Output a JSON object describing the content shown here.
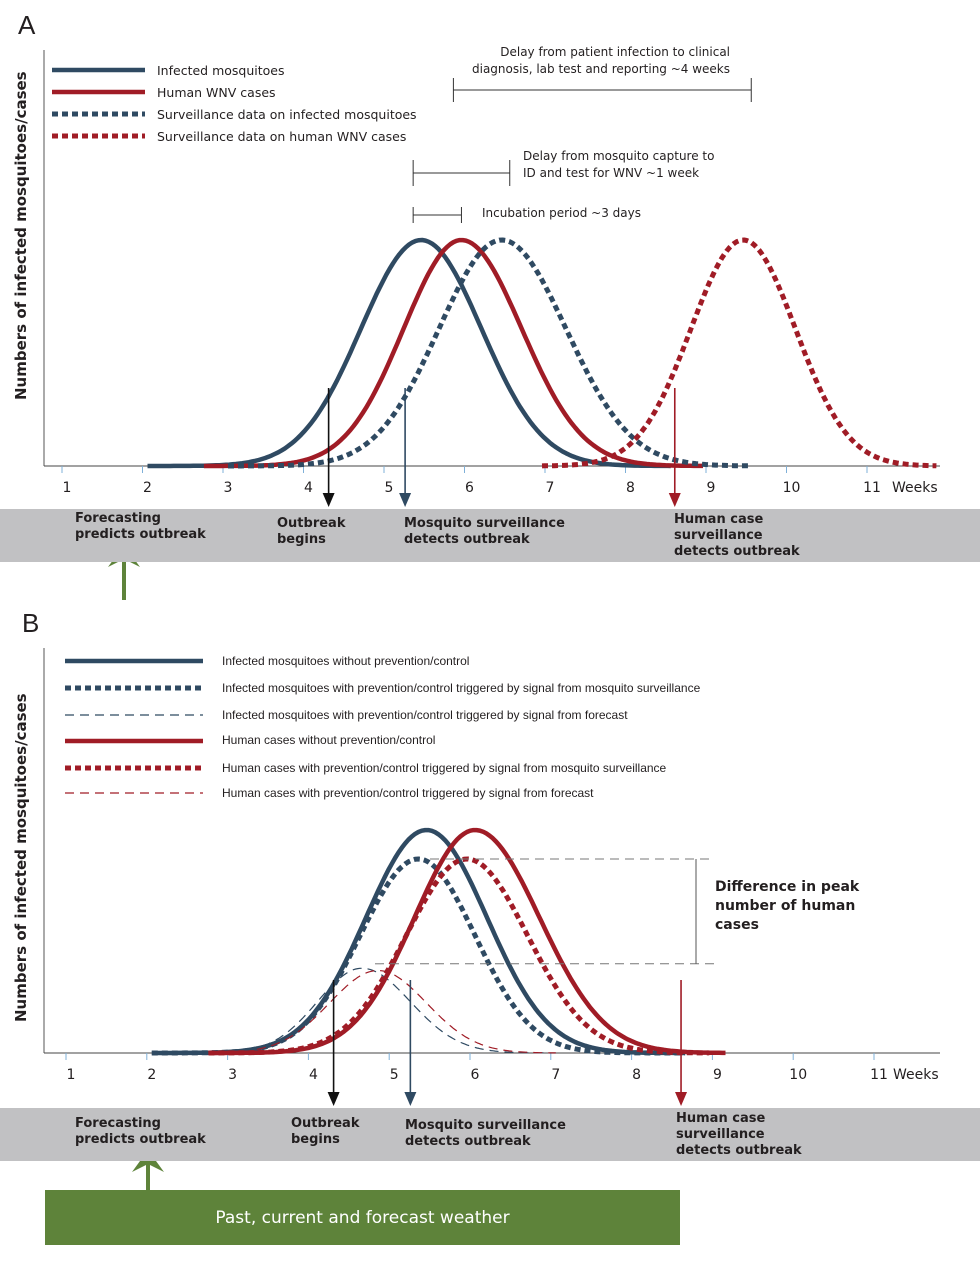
{
  "colors": {
    "mosquito": "#2f4a62",
    "human": "#a01c26",
    "band": "#c1c1c3",
    "weather": "#5e833a",
    "tick": "#7fb0d8"
  },
  "panel_a": {
    "letter": "A",
    "ylabel": "Numbers of infected mosquitoes/cases",
    "legend": [
      {
        "label": "Infected mosquitoes",
        "color": "#2f4a62",
        "style": "solid"
      },
      {
        "label": "Human WNV cases",
        "color": "#a01c26",
        "style": "solid"
      },
      {
        "label": "Surveillance data on infected mosquitoes",
        "color": "#2f4a62",
        "style": "dotted"
      },
      {
        "label": "Surveillance data on human WNV cases",
        "color": "#a01c26",
        "style": "dotted"
      }
    ],
    "annotations": {
      "delay_patient": "Delay from patient infection to clinical diagnosis, lab test and reporting ~4 weeks",
      "delay_patient_line1": "Delay from patient infection to clinical",
      "delay_patient_line2": "diagnosis, lab test and reporting ~4 weeks",
      "delay_mosquito_line1": "Delay from mosquito capture to",
      "delay_mosquito_line2": "ID and test for WNV ~1 week",
      "incubation": "Incubation period ~3 days"
    },
    "x_unit": "Weeks",
    "band_labels": {
      "forecast_line1": "Forecasting",
      "forecast_line2": "predicts outbreak",
      "outbreak_line1": "Outbreak",
      "outbreak_line2": "begins",
      "mosq_line1": "Mosquito surveillance",
      "mosq_line2": "detects outbreak",
      "human_line1": "Human case",
      "human_line2": "surveillance",
      "human_line3": "detects outbreak"
    }
  },
  "panel_b": {
    "letter": "B",
    "ylabel": "Numbers of infected mosquitoes/cases",
    "legend": [
      {
        "label": "Infected mosquitoes without prevention/control",
        "color": "#2f4a62",
        "style": "solid"
      },
      {
        "label": "Infected mosquitoes with prevention/control triggered by signal from mosquito surveillance",
        "color": "#2f4a62",
        "style": "dotted"
      },
      {
        "label": "Infected mosquitoes with prevention/control triggered by signal from forecast",
        "color": "#2f4a62",
        "style": "dashed"
      },
      {
        "label": "Human cases without prevention/control",
        "color": "#a01c26",
        "style": "solid"
      },
      {
        "label": "Human cases with prevention/control triggered by signal from mosquito surveillance",
        "color": "#a01c26",
        "style": "dotted"
      },
      {
        "label": "Human cases with prevention/control triggered by signal from forecast",
        "color": "#a01c26",
        "style": "dashed"
      }
    ],
    "diff_line1": "Difference in peak",
    "diff_line2": "number of human",
    "diff_line3": "cases",
    "x_unit": "Weeks",
    "band_labels": {
      "forecast_line1": "Forecasting",
      "forecast_line2": "predicts outbreak",
      "outbreak_line1": "Outbreak",
      "outbreak_line2": "begins",
      "mosq_line1": "Mosquito surveillance",
      "mosq_line2": "detects outbreak",
      "human_line1": "Human case",
      "human_line2": "surveillance",
      "human_line3": "detects outbreak"
    },
    "weather_label": "Past, current and forecast weather"
  },
  "chart_data": [
    {
      "type": "line",
      "title": "A",
      "xlabel": "Weeks",
      "ylabel": "Numbers of infected mosquitoes/cases",
      "x_ticks": [
        1,
        2,
        3,
        4,
        5,
        6,
        7,
        8,
        9,
        10,
        11
      ],
      "xlim": [
        0.9,
        11.8
      ],
      "ylim": [
        0,
        1.05
      ],
      "series": [
        {
          "name": "Infected mosquitoes",
          "style": "solid",
          "color": "#2f4a62",
          "peak_week": 5.4,
          "peak": 1.0,
          "sd_left": 0.75,
          "sd_right": 0.75,
          "x_range": [
            2.0,
            8.5
          ]
        },
        {
          "name": "Human WNV cases",
          "style": "solid",
          "color": "#a01c26",
          "peak_week": 5.9,
          "peak": 1.0,
          "sd_left": 0.72,
          "sd_right": 0.75,
          "x_range": [
            2.7,
            8.9
          ]
        },
        {
          "name": "Surveillance data on infected mosquitoes",
          "style": "dotted",
          "color": "#2f4a62",
          "peak_week": 6.4,
          "peak": 1.0,
          "sd_left": 0.78,
          "sd_right": 0.8,
          "x_range": [
            3.0,
            9.5
          ]
        },
        {
          "name": "Surveillance data on human WNV cases",
          "style": "dotted",
          "color": "#a01c26",
          "peak_week": 9.4,
          "peak": 1.0,
          "sd_left": 0.65,
          "sd_right": 0.65,
          "x_range": [
            6.9,
            11.8
          ]
        }
      ],
      "markers": [
        {
          "name": "Outbreak begins",
          "week": 4.25,
          "color": "#111111"
        },
        {
          "name": "Mosquito surveillance detects outbreak",
          "week": 5.2,
          "color": "#2f4a62"
        },
        {
          "name": "Human case surveillance detects outbreak",
          "week": 8.55,
          "color": "#a01c26"
        }
      ],
      "intervals": [
        {
          "label": "Incubation period ~3 days",
          "from_week": 5.3,
          "to_week": 5.9
        },
        {
          "label": "Delay from mosquito capture to ID and test for WNV ~1 week",
          "from_week": 5.3,
          "to_week": 6.5
        },
        {
          "label": "Delay from patient infection to clinical diagnosis, lab test and reporting ~4 weeks",
          "from_week": 5.8,
          "to_week": 9.5
        }
      ]
    },
    {
      "type": "line",
      "title": "B",
      "xlabel": "Weeks",
      "ylabel": "Numbers of infected mosquitoes/cases",
      "x_ticks": [
        1,
        2,
        3,
        4,
        5,
        6,
        7,
        8,
        9,
        10,
        11
      ],
      "xlim": [
        0.9,
        11.8
      ],
      "ylim": [
        0,
        1.05
      ],
      "series": [
        {
          "name": "Infected mosquitoes without prevention/control",
          "style": "solid",
          "color": "#2f4a62",
          "peak_week": 5.4,
          "peak": 1.0,
          "sd_left": 0.75,
          "sd_right": 0.75,
          "x_range": [
            2.0,
            8.6
          ]
        },
        {
          "name": "Infected mosquitoes with prevention/control triggered by signal from mosquito surveillance",
          "style": "dotted",
          "color": "#2f4a62",
          "peak_week": 5.3,
          "peak": 0.87,
          "sd_left": 0.72,
          "sd_right": 0.7,
          "x_range": [
            2.0,
            8.6
          ]
        },
        {
          "name": "Infected mosquitoes with prevention/control triggered by signal from forecast",
          "style": "dashed",
          "color": "#2f4a62",
          "peak_week": 4.6,
          "peak": 0.38,
          "sd_left": 0.55,
          "sd_right": 0.6,
          "x_range": [
            3.0,
            7.0
          ]
        },
        {
          "name": "Human cases without prevention/control",
          "style": "solid",
          "color": "#a01c26",
          "peak_week": 6.0,
          "peak": 1.0,
          "sd_left": 0.75,
          "sd_right": 0.8,
          "x_range": [
            2.7,
            9.1
          ]
        },
        {
          "name": "Human cases with prevention/control triggered by signal from mosquito surveillance",
          "style": "dotted",
          "color": "#a01c26",
          "peak_week": 5.9,
          "peak": 0.87,
          "sd_left": 0.75,
          "sd_right": 0.75,
          "x_range": [
            2.7,
            8.9
          ]
        },
        {
          "name": "Human cases with prevention/control triggered by signal from forecast",
          "style": "dashed",
          "color": "#a01c26",
          "peak_week": 4.8,
          "peak": 0.37,
          "sd_left": 0.6,
          "sd_right": 0.6,
          "x_range": [
            3.3,
            7.0
          ]
        }
      ],
      "markers": [
        {
          "name": "Outbreak begins",
          "week": 4.25,
          "color": "#111111"
        },
        {
          "name": "Mosquito surveillance detects outbreak",
          "week": 5.2,
          "color": "#2f4a62"
        },
        {
          "name": "Human case surveillance detects outbreak",
          "week": 8.55,
          "color": "#a01c26"
        }
      ],
      "annotation": {
        "label": "Difference in peak number of human cases",
        "upper_level": 0.87,
        "lower_level": 0.4
      }
    }
  ]
}
